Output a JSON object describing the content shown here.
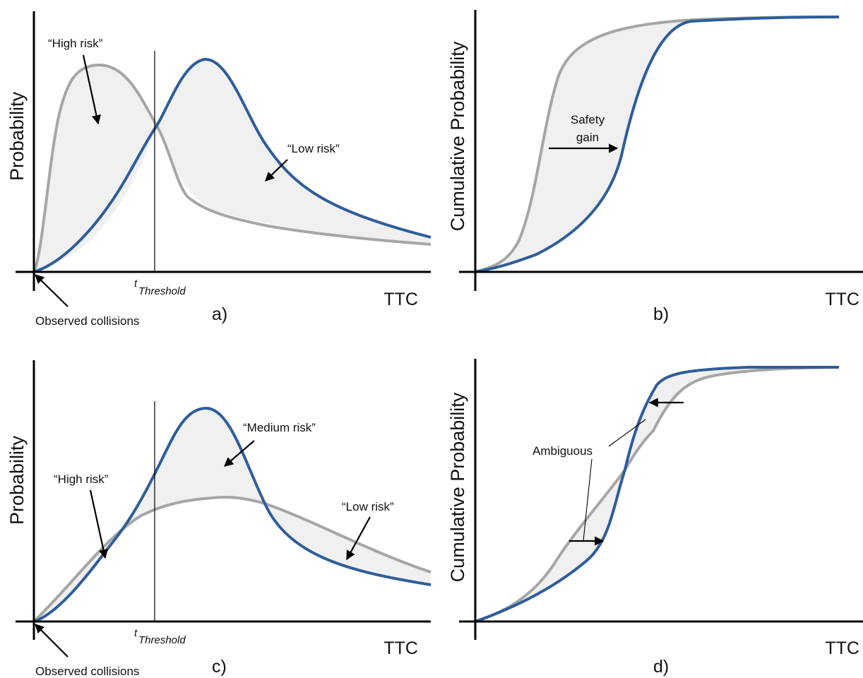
{
  "colors": {
    "curve_reference": "#a6a6a6",
    "curve_compared": "#2e5d9a",
    "shaded_area": "#f0f0f0",
    "axes": "#000000"
  },
  "panels": {
    "a": {
      "panel_label": "a)",
      "y_label": "Probability",
      "x_label": "TTC",
      "threshold_label_main": "t",
      "threshold_label_sub": "Threshold",
      "annotation_high_risk": "“High risk”",
      "annotation_low_risk": "“Low risk”",
      "annotation_collisions": "Observed collisions"
    },
    "b": {
      "panel_label": "b)",
      "y_label": "Cumulative Probability",
      "x_label": "TTC",
      "annotation_gain_line1": "Safety",
      "annotation_gain_line2": "gain"
    },
    "c": {
      "panel_label": "c)",
      "y_label": "Probability",
      "x_label": "TTC",
      "threshold_label_main": "t",
      "threshold_label_sub": "Threshold",
      "annotation_high_risk": "“High risk”",
      "annotation_medium_risk": "“Medium risk”",
      "annotation_low_risk": "“Low risk”",
      "annotation_collisions": "Observed collisions"
    },
    "d": {
      "panel_label": "d)",
      "y_label": "Cumulative Probability",
      "x_label": "TTC",
      "annotation_ambiguous": "Ambiguous"
    }
  }
}
